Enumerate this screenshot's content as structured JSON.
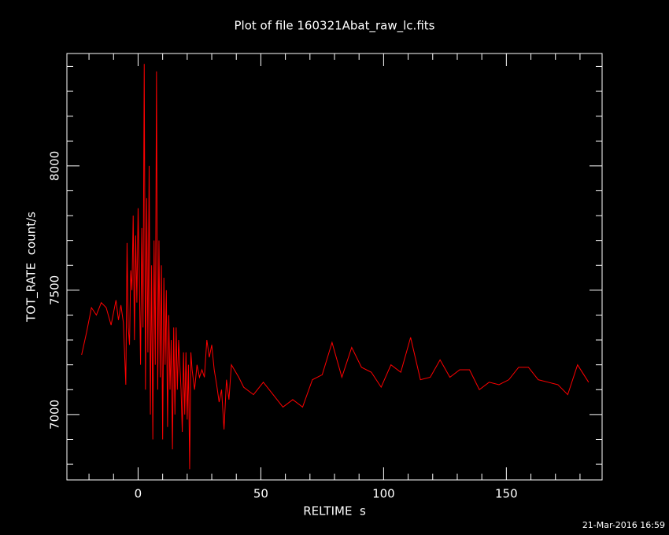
{
  "chart_data": {
    "type": "line",
    "title": "Plot of file 160321Abat_raw_lc.fits",
    "x_label": "RELTIME  s",
    "y_label": "TOT_RATE  count/s",
    "footer": "21-Mar-2016 16:59",
    "xlim": [
      -29,
      189
    ],
    "ylim": [
      6737,
      8452
    ],
    "xticks": [
      0,
      50,
      100,
      150
    ],
    "yticks": [
      7000,
      7500,
      8000
    ],
    "xminorticks": [
      -20,
      -10,
      10,
      20,
      30,
      40,
      60,
      70,
      80,
      90,
      110,
      120,
      130,
      140,
      160,
      170,
      180
    ],
    "yminorticks": [
      6800,
      6900,
      7100,
      7200,
      7300,
      7400,
      7600,
      7700,
      7800,
      7900,
      8100,
      8200,
      8300,
      8400
    ],
    "series": [
      {
        "color": "#ff0000",
        "x": [
          -23,
          -21,
          -19,
          -17,
          -15,
          -13,
          -11,
          -9,
          -8,
          -7,
          -6,
          -5,
          -4.5,
          -4,
          -3.5,
          -3,
          -2.5,
          -2,
          -1.5,
          -1,
          -0.5,
          0,
          0.5,
          1,
          1.5,
          2,
          2.5,
          3,
          3.5,
          4,
          4.5,
          5,
          5.5,
          6,
          6.5,
          7,
          7.5,
          8,
          8.5,
          9,
          9.5,
          10,
          10.5,
          11,
          11.5,
          12,
          12.5,
          13,
          13.5,
          14,
          14.5,
          15,
          15.5,
          16,
          16.5,
          17,
          17.5,
          18,
          18.5,
          19,
          19.5,
          20,
          20.5,
          21,
          21.5,
          22,
          23,
          24,
          25,
          26,
          27,
          28,
          29,
          30,
          31,
          32,
          33,
          34,
          35,
          36,
          37,
          38,
          41,
          43,
          47,
          51,
          55,
          59,
          63,
          67,
          71,
          75,
          79,
          83,
          87,
          91,
          95,
          99,
          103,
          107,
          111,
          115,
          119,
          123,
          127,
          131,
          135,
          139,
          143,
          147,
          151,
          155,
          159,
          163,
          167,
          171,
          175,
          179,
          183.5
        ],
        "values": [
          7240,
          7330,
          7430,
          7400,
          7450,
          7430,
          7360,
          7460,
          7380,
          7440,
          7370,
          7120,
          7690,
          7350,
          7280,
          7580,
          7500,
          7800,
          7300,
          7720,
          7450,
          7830,
          7550,
          7200,
          7750,
          7350,
          8410,
          7100,
          7870,
          7250,
          8000,
          7000,
          7600,
          6900,
          7700,
          7200,
          8380,
          7100,
          7700,
          7150,
          7600,
          6900,
          7550,
          7200,
          7500,
          6950,
          7400,
          7100,
          7300,
          6860,
          7350,
          7000,
          7350,
          7100,
          7300,
          7200,
          7100,
          6930,
          7250,
          7000,
          7250,
          6980,
          7200,
          6780,
          7250,
          7180,
          7100,
          7200,
          7150,
          7180,
          7150,
          7300,
          7230,
          7280,
          7180,
          7120,
          7050,
          7100,
          6940,
          7140,
          7060,
          7200,
          7150,
          7110,
          7080,
          7130,
          7080,
          7030,
          7060,
          7030,
          7140,
          7160,
          7290,
          7150,
          7270,
          7190,
          7170,
          7110,
          7200,
          7170,
          7310,
          7140,
          7150,
          7220,
          7150,
          7180,
          7180,
          7100,
          7130,
          7120,
          7140,
          7190,
          7190,
          7140,
          7130,
          7120,
          7080,
          7200,
          7130
        ]
      }
    ]
  }
}
